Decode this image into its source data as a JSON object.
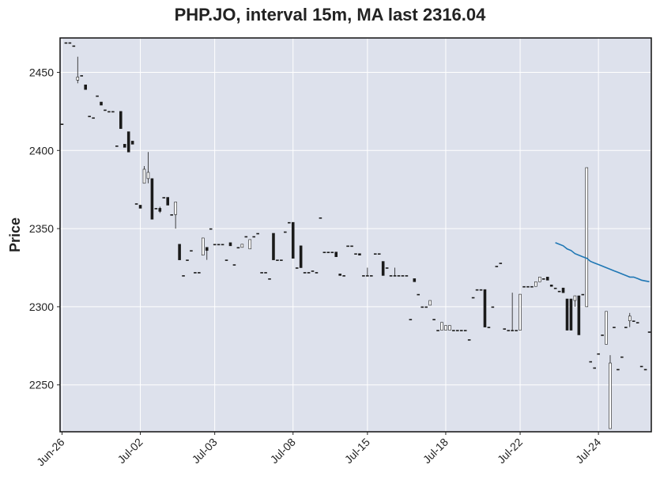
{
  "chart_data": {
    "type": "candlestick",
    "title": "PHP.JO, interval 15m, MA last 2316.04",
    "xlabel": "",
    "ylabel": "Price",
    "ylim": [
      2220,
      2472
    ],
    "yticks": [
      2250,
      2300,
      2350,
      2400,
      2450
    ],
    "x_ticks": [
      {
        "index": 0,
        "label": "Jun-26"
      },
      {
        "index": 20,
        "label": "Jul-02"
      },
      {
        "index": 39,
        "label": "Jul-03"
      },
      {
        "index": 59,
        "label": "Jul-08"
      },
      {
        "index": 78,
        "label": "Jul-15"
      },
      {
        "index": 98,
        "label": "Jul-18"
      },
      {
        "index": 117,
        "label": "Jul-22"
      },
      {
        "index": 137,
        "label": "Jul-24"
      }
    ],
    "grid": true,
    "colors": {
      "background": "#dde1ec",
      "grid": "#ffffff",
      "up": "#ffffff",
      "down": "#1a1a1a",
      "wick": "#1a1a1a",
      "ma": "#1f77b4"
    },
    "candles": [
      [
        2417,
        2417,
        2417,
        2417
      ],
      [
        2469,
        2469,
        2469,
        2469
      ],
      [
        2469,
        2469,
        2469,
        2469
      ],
      [
        2467,
        2467,
        2467,
        2467
      ],
      [
        2445,
        2460,
        2443,
        2447
      ],
      [
        2448,
        2448,
        2448,
        2448
      ],
      [
        2442,
        2442,
        2439,
        2439
      ],
      [
        2422,
        2422,
        2422,
        2422
      ],
      [
        2421,
        2421,
        2421,
        2421
      ],
      [
        2435,
        2435,
        2435,
        2435
      ],
      [
        2431,
        2431,
        2429,
        2429
      ],
      [
        2426,
        2426,
        2426,
        2426
      ],
      [
        2425,
        2425,
        2425,
        2425
      ],
      [
        2425,
        2425,
        2425,
        2425
      ],
      [
        2403,
        2403,
        2403,
        2403
      ],
      [
        2425,
        2425,
        2414,
        2414
      ],
      [
        2404,
        2404,
        2402,
        2402
      ],
      [
        2412,
        2412,
        2399,
        2399
      ],
      [
        2406,
        2406,
        2404,
        2404
      ],
      [
        2366,
        2366,
        2366,
        2366
      ],
      [
        2365,
        2365,
        2363,
        2363
      ],
      [
        2379,
        2390,
        2379,
        2388
      ],
      [
        2382,
        2399,
        2379,
        2386
      ],
      [
        2382,
        2382,
        2356,
        2356
      ],
      [
        2363,
        2363,
        2363,
        2363
      ],
      [
        2363,
        2364,
        2360,
        2361
      ],
      [
        2370,
        2370,
        2370,
        2370
      ],
      [
        2370,
        2370,
        2365,
        2365
      ],
      [
        2359,
        2359,
        2359,
        2359
      ],
      [
        2359,
        2367,
        2350,
        2367
      ],
      [
        2340,
        2340,
        2330,
        2330
      ],
      [
        2320,
        2320,
        2320,
        2320
      ],
      [
        2330,
        2330,
        2330,
        2330
      ],
      [
        2336,
        2336,
        2336,
        2336
      ],
      [
        2322,
        2322,
        2322,
        2322
      ],
      [
        2322,
        2322,
        2322,
        2322
      ],
      [
        2333,
        2344,
        2333,
        2344
      ],
      [
        2338,
        2338,
        2330,
        2336
      ],
      [
        2350,
        2350,
        2350,
        2350
      ],
      [
        2340,
        2340,
        2340,
        2340
      ],
      [
        2340,
        2340,
        2340,
        2340
      ],
      [
        2340,
        2340,
        2340,
        2340
      ],
      [
        2330,
        2330,
        2330,
        2330
      ],
      [
        2341,
        2341,
        2339,
        2339
      ],
      [
        2327,
        2327,
        2327,
        2327
      ],
      [
        2338,
        2338,
        2338,
        2338
      ],
      [
        2338,
        2340,
        2338,
        2340
      ],
      [
        2345,
        2345,
        2345,
        2345
      ],
      [
        2337,
        2343,
        2337,
        2343
      ],
      [
        2345,
        2345,
        2345,
        2345
      ],
      [
        2347,
        2347,
        2347,
        2347
      ],
      [
        2322,
        2322,
        2322,
        2322
      ],
      [
        2322,
        2322,
        2322,
        2322
      ],
      [
        2318,
        2318,
        2318,
        2318
      ],
      [
        2347,
        2347,
        2330,
        2330
      ],
      [
        2330,
        2330,
        2330,
        2330
      ],
      [
        2330,
        2330,
        2330,
        2330
      ],
      [
        2348,
        2348,
        2348,
        2348
      ],
      [
        2354,
        2354,
        2354,
        2354
      ],
      [
        2354,
        2354,
        2331,
        2331
      ],
      [
        2325,
        2325,
        2325,
        2325
      ],
      [
        2339,
        2339,
        2325,
        2325
      ],
      [
        2322,
        2322,
        2322,
        2322
      ],
      [
        2322,
        2322,
        2322,
        2322
      ],
      [
        2323,
        2323,
        2323,
        2323
      ],
      [
        2322,
        2322,
        2322,
        2322
      ],
      [
        2357,
        2357,
        2357,
        2357
      ],
      [
        2335,
        2335,
        2335,
        2335
      ],
      [
        2335,
        2335,
        2335,
        2335
      ],
      [
        2335,
        2335,
        2335,
        2335
      ],
      [
        2335,
        2335,
        2332,
        2332
      ],
      [
        2321,
        2321,
        2320,
        2320
      ],
      [
        2320,
        2320,
        2320,
        2320
      ],
      [
        2339,
        2339,
        2339,
        2339
      ],
      [
        2339,
        2339,
        2339,
        2339
      ],
      [
        2334,
        2334,
        2334,
        2334
      ],
      [
        2334,
        2334,
        2333,
        2333
      ],
      [
        2320,
        2320,
        2320,
        2320
      ],
      [
        2320,
        2325,
        2320,
        2320
      ],
      [
        2320,
        2320,
        2320,
        2320
      ],
      [
        2334,
        2334,
        2334,
        2334
      ],
      [
        2334,
        2334,
        2334,
        2334
      ],
      [
        2329,
        2329,
        2320,
        2320
      ],
      [
        2325,
        2325,
        2325,
        2325
      ],
      [
        2320,
        2320,
        2320,
        2320
      ],
      [
        2320,
        2325,
        2320,
        2320
      ],
      [
        2320,
        2320,
        2320,
        2320
      ],
      [
        2320,
        2320,
        2320,
        2320
      ],
      [
        2320,
        2320,
        2320,
        2320
      ],
      [
        2292,
        2292,
        2292,
        2292
      ],
      [
        2318,
        2318,
        2316,
        2316
      ],
      [
        2308,
        2308,
        2308,
        2308
      ],
      [
        2300,
        2300,
        2300,
        2300
      ],
      [
        2300,
        2300,
        2300,
        2300
      ],
      [
        2301,
        2304,
        2301,
        2304
      ],
      [
        2292,
        2292,
        2292,
        2292
      ],
      [
        2285,
        2285,
        2285,
        2285
      ],
      [
        2285,
        2290,
        2285,
        2290
      ],
      [
        2285,
        2288,
        2285,
        2288
      ],
      [
        2285,
        2288,
        2285,
        2288
      ],
      [
        2285,
        2285,
        2285,
        2285
      ],
      [
        2285,
        2285,
        2285,
        2285
      ],
      [
        2285,
        2285,
        2285,
        2285
      ],
      [
        2285,
        2285,
        2285,
        2285
      ],
      [
        2279,
        2279,
        2279,
        2279
      ],
      [
        2306,
        2306,
        2306,
        2306
      ],
      [
        2311,
        2311,
        2311,
        2311
      ],
      [
        2311,
        2311,
        2311,
        2311
      ],
      [
        2311,
        2311,
        2287,
        2287
      ],
      [
        2287,
        2287,
        2287,
        2287
      ],
      [
        2300,
        2300,
        2300,
        2300
      ],
      [
        2326,
        2326,
        2326,
        2326
      ],
      [
        2328,
        2328,
        2328,
        2328
      ],
      [
        2286,
        2286,
        2286,
        2286
      ],
      [
        2285,
        2285,
        2285,
        2285
      ],
      [
        2285,
        2309,
        2285,
        2285
      ],
      [
        2285,
        2285,
        2285,
        2285
      ],
      [
        2285,
        2308,
        2285,
        2308
      ],
      [
        2313,
        2313,
        2313,
        2313
      ],
      [
        2313,
        2313,
        2313,
        2313
      ],
      [
        2313,
        2313,
        2313,
        2313
      ],
      [
        2313,
        2316,
        2313,
        2316
      ],
      [
        2316,
        2319,
        2316,
        2319
      ],
      [
        2318,
        2318,
        2318,
        2318
      ],
      [
        2319,
        2319,
        2317,
        2317
      ],
      [
        2314,
        2314,
        2313,
        2313
      ],
      [
        2312,
        2312,
        2312,
        2312
      ],
      [
        2310,
        2310,
        2310,
        2310
      ],
      [
        2312,
        2312,
        2309,
        2309
      ],
      [
        2305,
        2305,
        2285,
        2285
      ],
      [
        2305,
        2305,
        2285,
        2285
      ],
      [
        2304,
        2307,
        2300,
        2307
      ],
      [
        2307,
        2307,
        2282,
        2282
      ],
      [
        2308,
        2308,
        2308,
        2308
      ],
      [
        2300,
        2389,
        2300,
        2389
      ],
      [
        2265,
        2265,
        2265,
        2265
      ],
      [
        2261,
        2261,
        2261,
        2261
      ],
      [
        2270,
        2270,
        2270,
        2270
      ],
      [
        2282,
        2282,
        2282,
        2282
      ],
      [
        2276,
        2297,
        2276,
        2297
      ],
      [
        2222,
        2269,
        2222,
        2264
      ],
      [
        2287,
        2287,
        2287,
        2287
      ],
      [
        2260,
        2260,
        2260,
        2260
      ],
      [
        2268,
        2268,
        2268,
        2268
      ],
      [
        2287,
        2287,
        2287,
        2287
      ],
      [
        2291,
        2296,
        2287,
        2294
      ],
      [
        2291,
        2291,
        2291,
        2291
      ],
      [
        2290,
        2290,
        2290,
        2290
      ],
      [
        2262,
        2262,
        2262,
        2262
      ],
      [
        2260,
        2260,
        2260,
        2260
      ],
      [
        2284,
        2284,
        2284,
        2284
      ]
    ],
    "ma": {
      "start_index": 126,
      "values": [
        2341,
        2340,
        2339,
        2337,
        2336,
        2334,
        2333,
        2332,
        2331,
        2329,
        2328,
        2327,
        2326,
        2325,
        2324,
        2323,
        2322,
        2321,
        2320,
        2319,
        2319,
        2318,
        2317,
        2316.5,
        2316.04
      ]
    }
  }
}
